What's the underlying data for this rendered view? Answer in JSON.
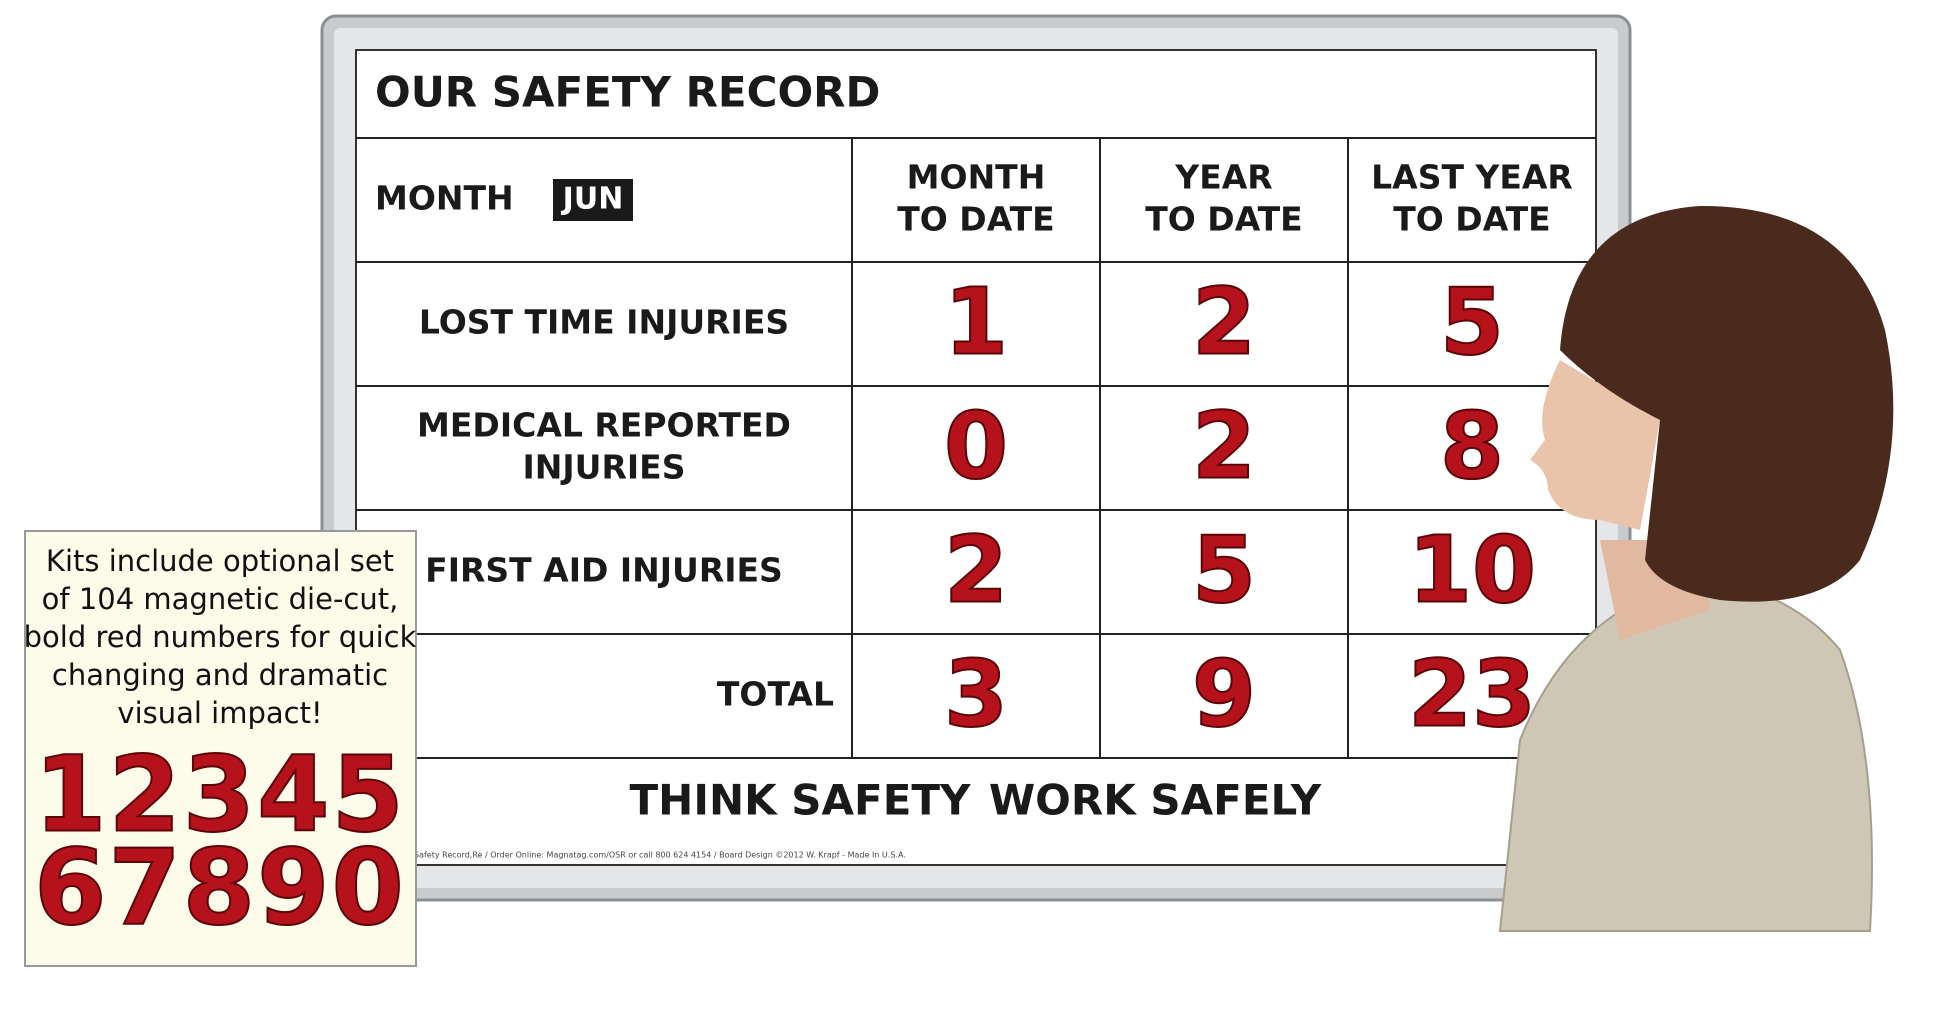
{
  "board": {
    "title": "OUR SAFETY RECORD",
    "month_label": "MONTH",
    "month_value": "JUN",
    "columns": [
      [
        "MONTH",
        "TO DATE"
      ],
      [
        "YEAR",
        "TO DATE"
      ],
      [
        "LAST YEAR",
        "TO DATE"
      ]
    ],
    "rows": [
      {
        "label": [
          "LOST TIME INJURIES"
        ],
        "values": [
          1,
          2,
          5
        ]
      },
      {
        "label": [
          "MEDICAL REPORTED",
          "INJURIES"
        ],
        "values": [
          0,
          2,
          8
        ]
      },
      {
        "label": [
          "FIRST AID INJURIES"
        ],
        "values": [
          2,
          5,
          10
        ]
      },
      {
        "label": [
          "TOTAL"
        ],
        "values": [
          3,
          9,
          23
        ]
      }
    ],
    "footer": [
      "THINK SAFETY",
      "WORK SAFELY"
    ],
    "fine_print": "Safety Record,Re / Order Online: Magnatag.com/OSR or call 800 624 4154 / Board Design ©2012 W. Krapf - Made In U.S.A."
  },
  "side_panel": {
    "text": [
      "Kits include optional set",
      "of 104 magnetic die-cut,",
      "bold red numbers for quick",
      "changing and dramatic",
      "visual impact!"
    ],
    "numbers": [
      "12345",
      "67890"
    ]
  }
}
